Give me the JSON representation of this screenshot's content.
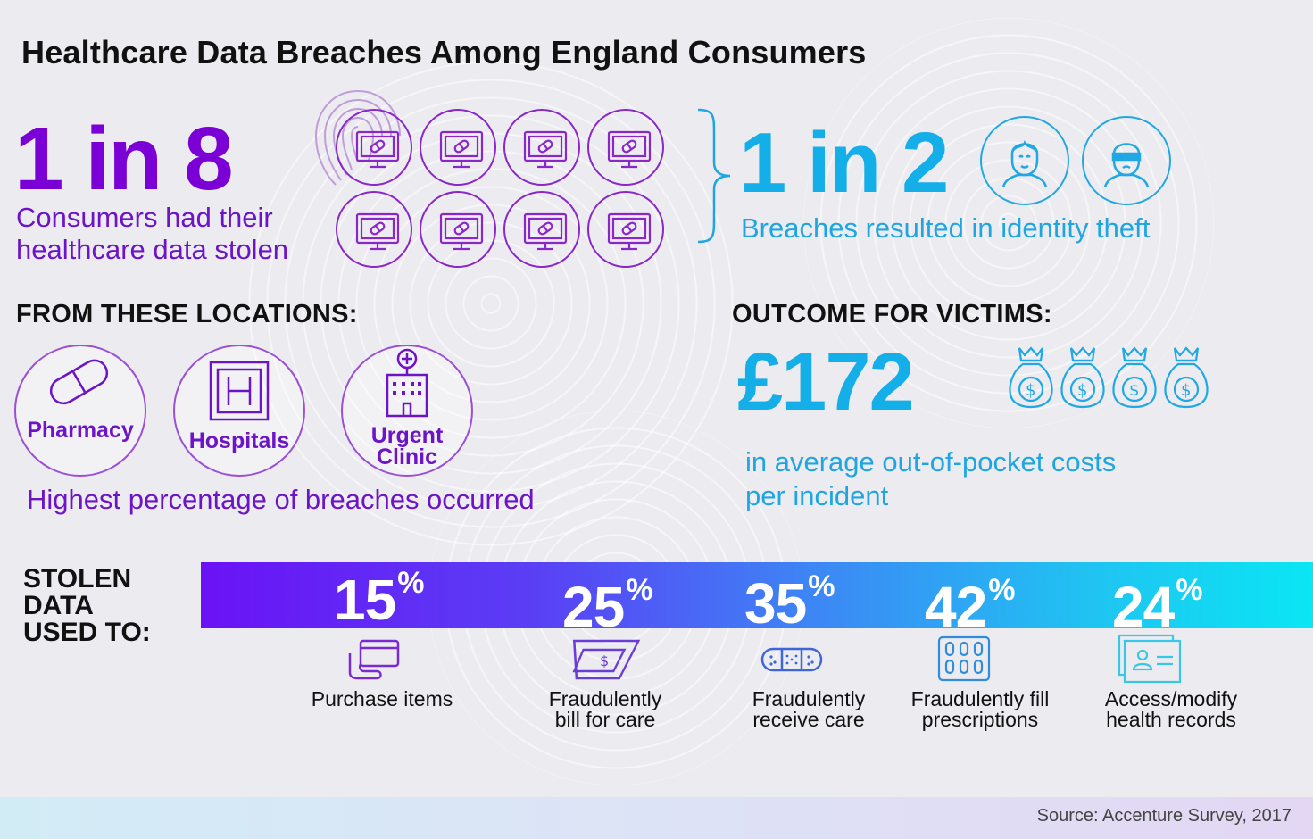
{
  "title": "Healthcare Data Breaches Among England Consumers",
  "stat_stolen": {
    "ratio": "1 in 8",
    "description_line1": "Consumers had their",
    "description_line2": "healthcare data stolen"
  },
  "stat_identity": {
    "ratio": "1 in 2",
    "description": "Breaches resulted in identity theft"
  },
  "locations": {
    "heading": "FROM THESE LOCATIONS:",
    "items": [
      {
        "label_line1": "Pharmacy",
        "label_line2": ""
      },
      {
        "label_line1": "Hospitals",
        "label_line2": ""
      },
      {
        "label_line1": "Urgent",
        "label_line2": "Clinic"
      }
    ],
    "caption": "Highest percentage of breaches occurred"
  },
  "outcome": {
    "heading": "OUTCOME FOR VICTIMS:",
    "amount": "£172",
    "caption_line1": "in average out-of-pocket costs",
    "caption_line2": "per incident"
  },
  "uses": {
    "heading_line1": "STOLEN",
    "heading_line2": "DATA",
    "heading_line3": "USED TO:",
    "items": [
      {
        "value": "15",
        "unit": "%",
        "label_line1": "Purchase items",
        "label_line2": "",
        "icon": "credit-card-icon"
      },
      {
        "value": "25",
        "unit": "%",
        "label_line1": "Fraudulently",
        "label_line2": "bill for care",
        "icon": "bill-icon"
      },
      {
        "value": "35",
        "unit": "%",
        "label_line1": "Fraudulently",
        "label_line2": "receive care",
        "icon": "bandage-icon"
      },
      {
        "value": "42",
        "unit": "%",
        "label_line1": "Fraudulently fill",
        "label_line2": "prescriptions",
        "icon": "pill-pack-icon"
      },
      {
        "value": "24",
        "unit": "%",
        "label_line1": "Access/modify",
        "label_line2": "health records",
        "icon": "health-record-icon"
      }
    ]
  },
  "source": "Source: Accenture Survey, 2017",
  "colors": {
    "purple": "#7a00d6",
    "blue": "#14aee8",
    "background": "#ecebef"
  }
}
